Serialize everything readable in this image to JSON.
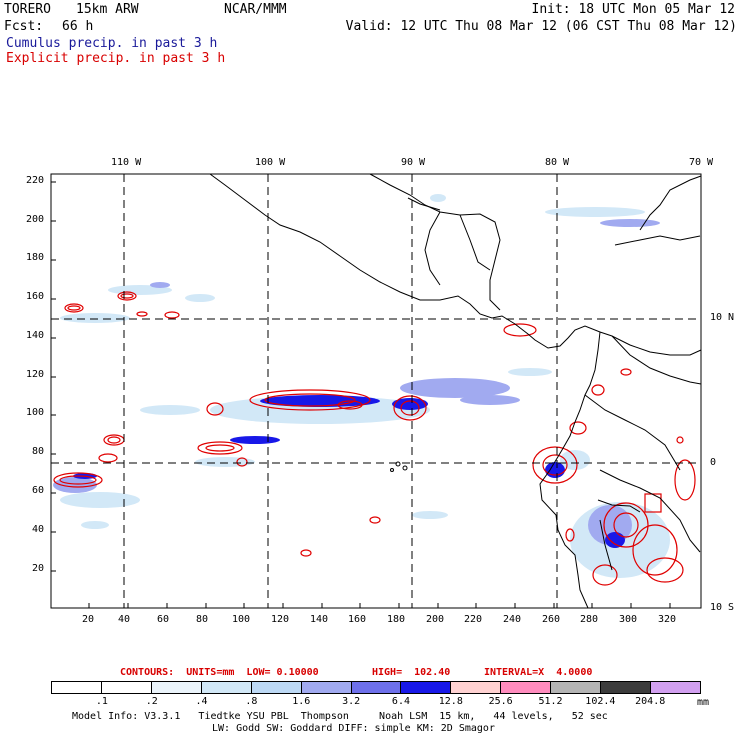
{
  "header": {
    "model": "TORERO",
    "resolution": "15km ARW",
    "org": "NCAR/MMM",
    "init": "Init: 18 UTC Mon 05 Mar 12",
    "fcst_label": "Fcst:",
    "fcst_value": "66 h",
    "valid": "Valid: 12 UTC Thu 08 Mar 12 (06 CST Thu 08 Mar 12)"
  },
  "legend": {
    "cumulus": "Cumulus precip. in past 3 h",
    "explicit": "Explicit precip. in past 3 h"
  },
  "axes": {
    "top_lon": [
      "110 W",
      "100 W",
      "90 W",
      "80 W",
      "70 W"
    ],
    "right_lat": [
      "10 N",
      "0",
      "10 S"
    ],
    "left_y": [
      "220",
      "200",
      "180",
      "160",
      "140",
      "120",
      "100",
      "80",
      "60",
      "40",
      "20"
    ],
    "bottom_x": [
      "20",
      "40",
      "60",
      "80",
      "100",
      "120",
      "140",
      "160",
      "180",
      "200",
      "220",
      "240",
      "260",
      "280",
      "300",
      "320"
    ]
  },
  "contours": {
    "units": "CONTOURS:  UNITS=mm  LOW= 0.10000",
    "high": "HIGH=  102.40",
    "interval": "INTERVAL=X  4.0000"
  },
  "colorbar": {
    "unit": "mm",
    "labels": [
      ".1",
      ".2",
      ".4",
      ".8",
      "1.6",
      "3.2",
      "6.4",
      "12.8",
      "25.6",
      "51.2",
      "102.4",
      "204.8"
    ],
    "colors": [
      "#ffffff",
      "#ffffff",
      "#ebf4fb",
      "#d2e8f7",
      "#bdd9f5",
      "#a1aaf0",
      "#6e70ea",
      "#1818e8",
      "#ffd2d2",
      "#ff8cbe",
      "#b4b4b4",
      "#3c3c3c",
      "#d2a0f0"
    ]
  },
  "model_info": {
    "line1": "Model Info: V3.3.1   Tiedtke YSU PBL  Thompson     Noah LSM  15 km,   44 levels,   52 sec",
    "line2": "LW: Godd SW: Goddard DIFF: simple KM: 2D Smagor"
  }
}
